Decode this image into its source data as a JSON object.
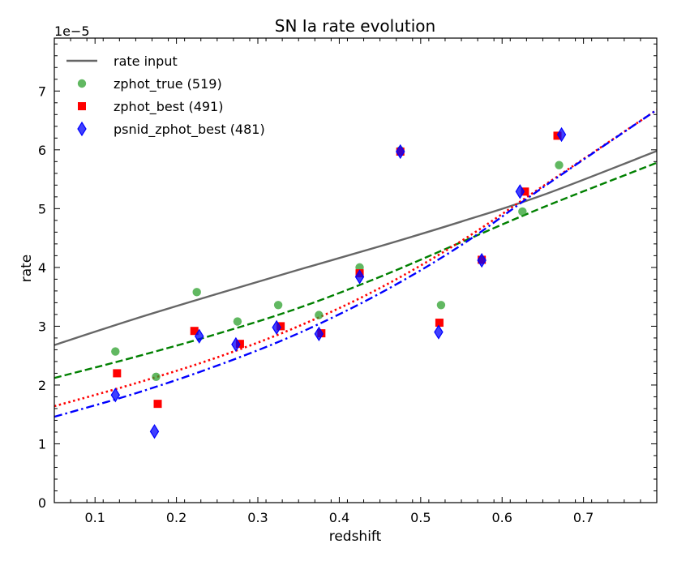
{
  "chart_data": {
    "type": "line",
    "title": "SN Ia rate evolution",
    "xlabel": "redshift",
    "ylabel": "rate",
    "y_offset_text": "1e−5",
    "xlim": [
      0.05,
      0.79
    ],
    "ylim": [
      0,
      7.9
    ],
    "xticks": [
      0.1,
      0.2,
      0.3,
      0.4,
      0.5,
      0.6,
      0.7
    ],
    "xtick_labels": [
      "0.1",
      "0.2",
      "0.3",
      "0.4",
      "0.5",
      "0.6",
      "0.7"
    ],
    "yticks": [
      0,
      1,
      2,
      3,
      4,
      5,
      6,
      7
    ],
    "ytick_labels": [
      "0",
      "1",
      "2",
      "3",
      "4",
      "5",
      "6",
      "7"
    ],
    "legend_position": "upper-left",
    "grid": false,
    "lines": [
      {
        "name": "rate input",
        "color": "#666666",
        "style": "solid",
        "x": [
          0.05,
          0.15,
          0.25,
          0.35,
          0.45,
          0.55,
          0.65,
          0.79
        ],
        "y": [
          2.68,
          3.13,
          3.55,
          3.96,
          4.36,
          4.78,
          5.23,
          5.98
        ]
      },
      {
        "name": "",
        "color": "#008000",
        "style": "dashed",
        "x": [
          0.05,
          0.15,
          0.25,
          0.35,
          0.45,
          0.55,
          0.65,
          0.79
        ],
        "y": [
          2.12,
          2.48,
          2.87,
          3.31,
          3.84,
          4.43,
          5.02,
          5.78
        ]
      },
      {
        "name": "",
        "color": "#ff0000",
        "style": "dotted",
        "x": [
          0.05,
          0.15,
          0.25,
          0.35,
          0.45,
          0.55,
          0.65,
          0.79
        ],
        "y": [
          1.64,
          2.03,
          2.47,
          3.0,
          3.65,
          4.45,
          5.38,
          6.68
        ]
      },
      {
        "name": "",
        "color": "#0000ff",
        "style": "dashdot",
        "x": [
          0.05,
          0.15,
          0.25,
          0.35,
          0.45,
          0.55,
          0.65,
          0.79
        ],
        "y": [
          1.46,
          1.86,
          2.33,
          2.88,
          3.56,
          4.38,
          5.36,
          6.68
        ]
      }
    ],
    "scatter": [
      {
        "name": "zphot_true (519)",
        "color": "#2ca02c",
        "marker": "circle",
        "x": [
          0.125,
          0.175,
          0.225,
          0.275,
          0.325,
          0.375,
          0.425,
          0.475,
          0.525,
          0.575,
          0.625,
          0.67
        ],
        "y": [
          2.57,
          2.14,
          3.58,
          3.08,
          3.36,
          3.19,
          4.0,
          5.99,
          3.36,
          4.13,
          4.95,
          5.74
        ]
      },
      {
        "name": "zphot_best (491)",
        "color": "#ff0000",
        "marker": "square",
        "x": [
          0.127,
          0.177,
          0.222,
          0.278,
          0.328,
          0.378,
          0.425,
          0.475,
          0.523,
          0.575,
          0.628,
          0.668
        ],
        "y": [
          2.2,
          1.68,
          2.92,
          2.7,
          3.0,
          2.88,
          3.9,
          5.97,
          3.06,
          4.13,
          5.29,
          6.24
        ]
      },
      {
        "name": "psnid_zphot_best (481)",
        "color": "#0000ff",
        "marker": "diamond",
        "x": [
          0.125,
          0.173,
          0.228,
          0.273,
          0.323,
          0.375,
          0.425,
          0.475,
          0.522,
          0.575,
          0.622,
          0.673
        ],
        "y": [
          1.83,
          1.21,
          2.83,
          2.69,
          2.98,
          2.87,
          3.84,
          5.97,
          2.9,
          4.12,
          5.29,
          6.26
        ]
      }
    ]
  }
}
